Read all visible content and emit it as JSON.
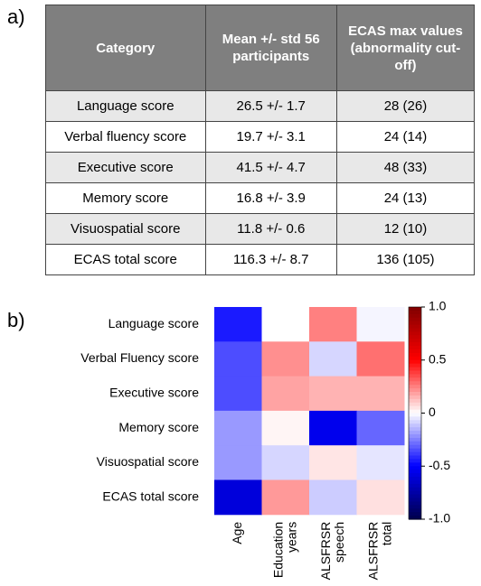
{
  "panel_a": {
    "label": "a)",
    "table": {
      "header": [
        "Category",
        "Mean +/- std 56 participants",
        "ECAS max values (abnormality cut-off)"
      ],
      "rows": [
        [
          "Language score",
          "26.5 +/- 1.7",
          "28  (26)"
        ],
        [
          "Verbal fluency score",
          "19.7 +/- 3.1",
          "24 (14)"
        ],
        [
          "Executive score",
          "41.5 +/- 4.7",
          "48 (33)"
        ],
        [
          "Memory score",
          "16.8 +/- 3.9",
          "24  (13)"
        ],
        [
          "Visuospatial score",
          "11.8 +/- 0.6",
          "12  (10)"
        ],
        [
          "ECAS total score",
          "116.3 +/- 8.7",
          "136 (105)"
        ]
      ]
    }
  },
  "panel_b": {
    "label": "b)"
  },
  "chart_data": {
    "type": "heatmap",
    "rows": [
      "Language score",
      "Verbal Fluency score",
      "Executive score",
      "Memory score",
      "Visuospatial score",
      "ECAS total score"
    ],
    "columns": [
      "Age",
      "Education years",
      "ALSFRSR speech",
      "ALSFRSR total"
    ],
    "values": [
      [
        -0.45,
        0,
        0.25,
        -0.02
      ],
      [
        -0.35,
        0.22,
        -0.08,
        0.28
      ],
      [
        -0.35,
        0.18,
        0.15,
        0.15
      ],
      [
        -0.2,
        0.02,
        -0.55,
        -0.3
      ],
      [
        -0.2,
        -0.08,
        0.05,
        -0.05
      ],
      [
        -0.6,
        0.2,
        -0.1,
        0.06
      ]
    ],
    "colormap": "seismic",
    "zlim": [
      -1,
      1
    ],
    "zticks": [
      {
        "value": 1,
        "label": "1.0"
      },
      0.5,
      0,
      -0.5,
      {
        "value": -1,
        "label": "-1.0"
      }
    ]
  }
}
